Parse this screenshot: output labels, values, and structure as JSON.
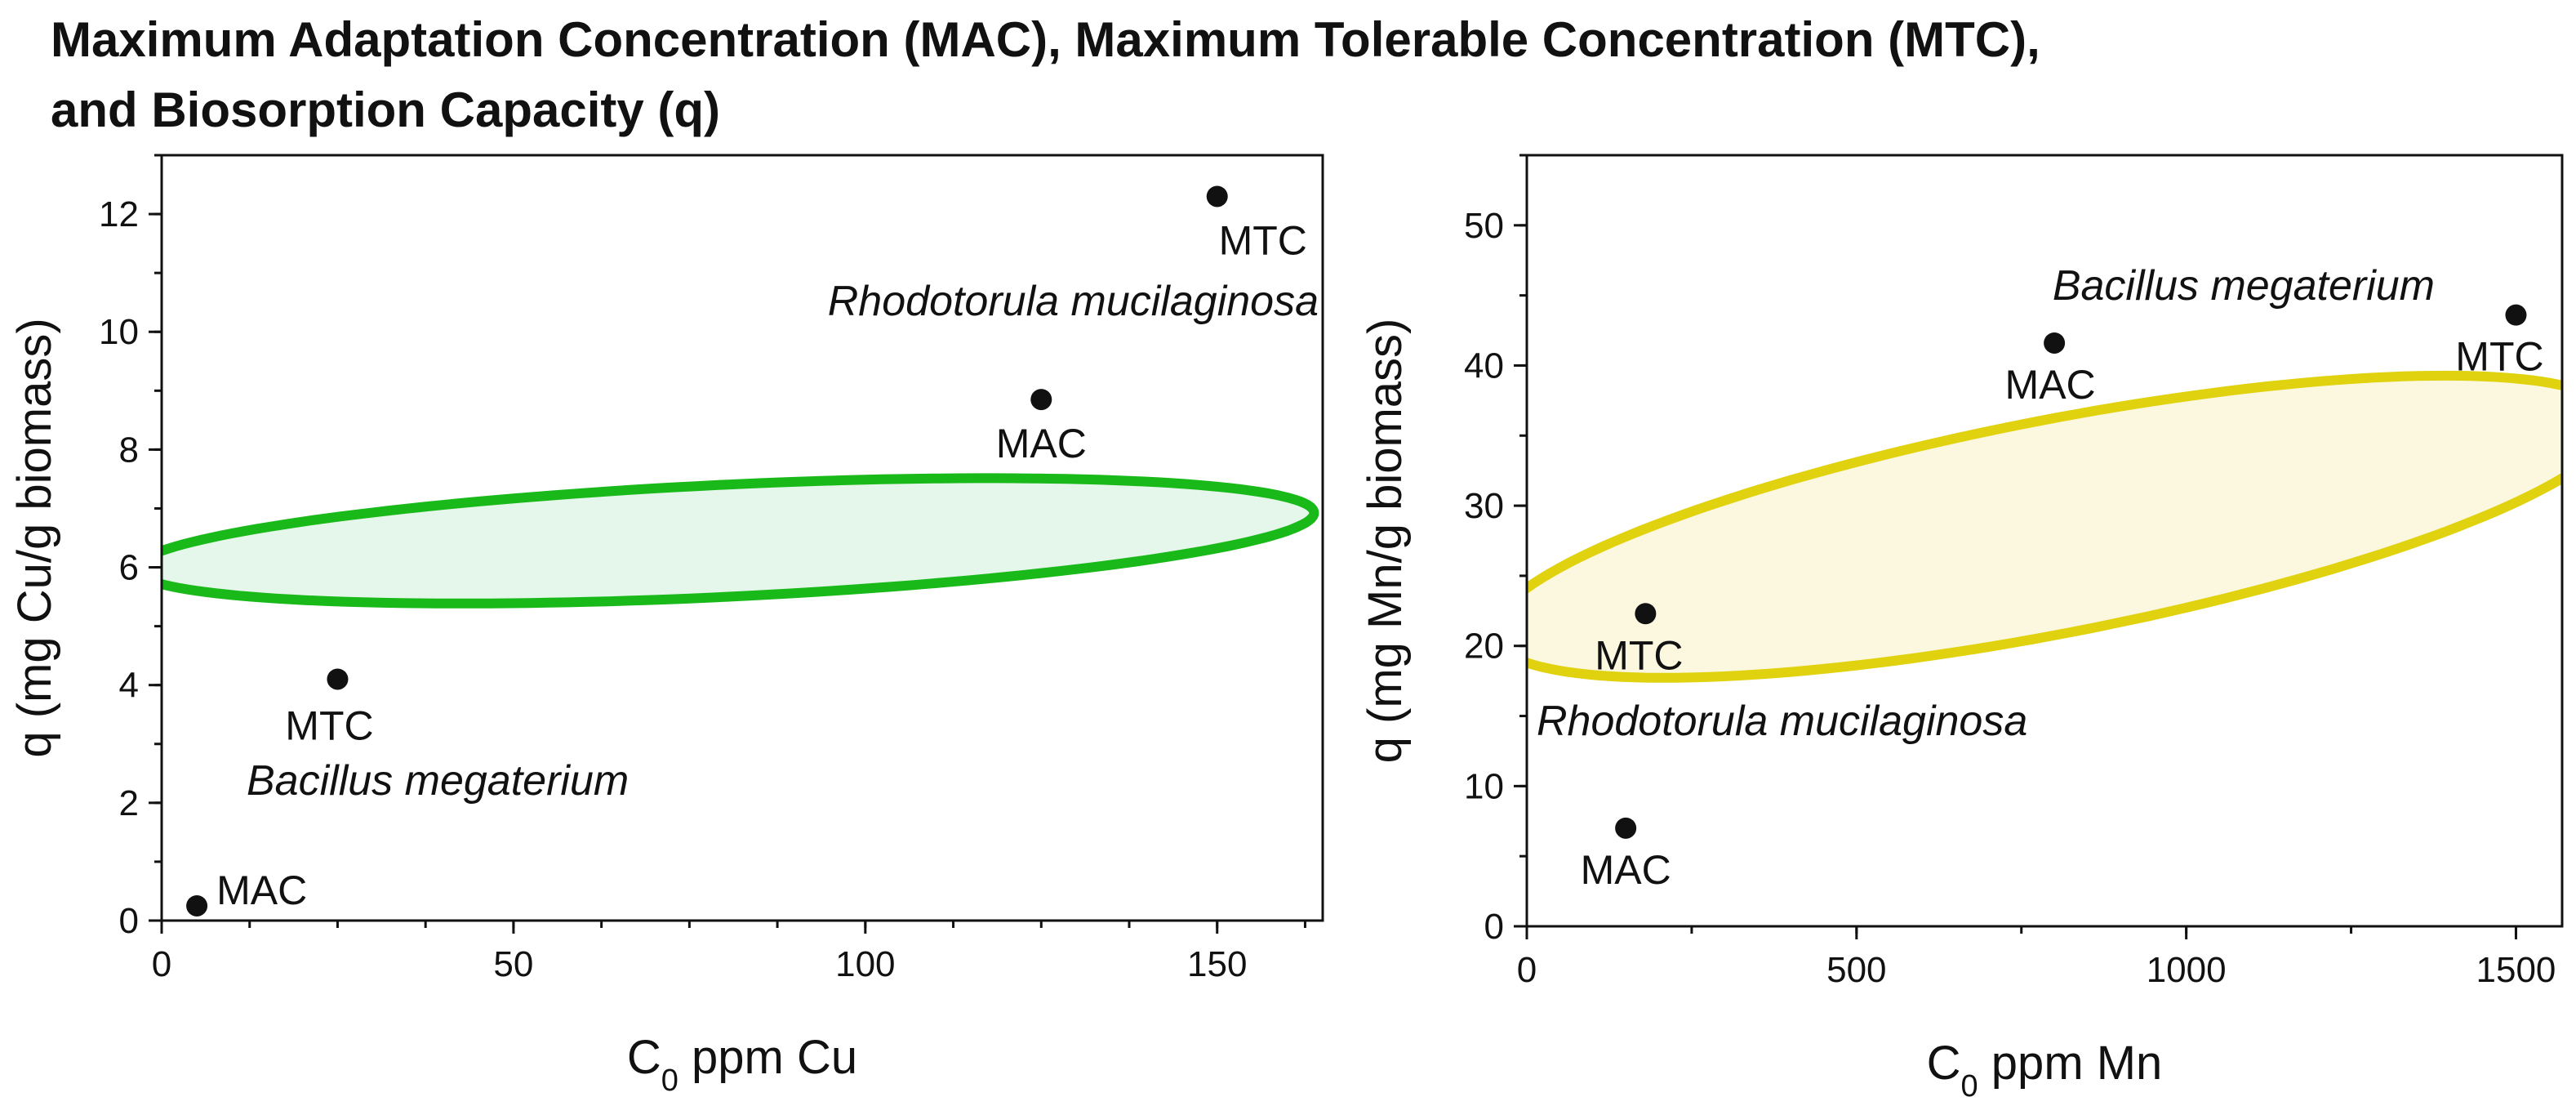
{
  "title": {
    "line1": "Maximum Adaptation Concentration (MAC), Maximum Tolerable Concentration (MTC),",
    "line2": "and Biosorption Capacity (q)"
  },
  "chart_data": [
    {
      "type": "scatter",
      "xlabel": {
        "main": "C",
        "sub": "0",
        "rest": " ppm Cu"
      },
      "ylabel": "q (mg Cu/g biomass)",
      "xlim": [
        0,
        165
      ],
      "ylim": [
        0,
        13
      ],
      "xticks": [
        0,
        50,
        100,
        150
      ],
      "yticks": [
        0,
        2,
        4,
        6,
        8,
        10,
        12
      ],
      "minor_x_step": 12.5,
      "minor_y_step": 1,
      "points": [
        {
          "label": "MAC",
          "x": 5,
          "y": 0.25
        },
        {
          "label": "MTC",
          "x": 25,
          "y": 4.1
        },
        {
          "label": "MAC",
          "x": 125,
          "y": 8.85
        },
        {
          "label": "MTC",
          "x": 150,
          "y": 12.3
        }
      ],
      "groups": [
        {
          "name": "Rhodotorula mucilaginosa",
          "points": [
            2,
            3
          ]
        },
        {
          "name": "Bacillus megaterium",
          "points": [
            0,
            1
          ]
        }
      ],
      "ellipse": {
        "center": [
          80,
          6.45
        ],
        "semi_axes": [
          84,
          0.95
        ],
        "angle_deg": 4.2,
        "stroke": "#1ab91a",
        "fill": "#e5f6ea"
      }
    },
    {
      "type": "scatter",
      "xlabel": {
        "main": "C",
        "sub": "0",
        "rest": " ppm Mn"
      },
      "ylabel": "q (mg Mn/g biomass)",
      "xlim": [
        0,
        1570
      ],
      "ylim": [
        0,
        55
      ],
      "xticks": [
        0,
        500,
        1000,
        1500
      ],
      "yticks": [
        0,
        10,
        20,
        30,
        40,
        50
      ],
      "minor_x_step": 250,
      "minor_y_step": 5,
      "points": [
        {
          "label": "MAC",
          "x": 150,
          "y": 7
        },
        {
          "label": "MTC",
          "x": 180,
          "y": 22.3
        },
        {
          "label": "MAC",
          "x": 800,
          "y": 41.6
        },
        {
          "label": "MTC",
          "x": 1500,
          "y": 43.6
        }
      ],
      "groups": [
        {
          "name": "Bacillus megaterium",
          "points": [
            2,
            3
          ]
        },
        {
          "name": "Rhodotorula mucilaginosa",
          "points": [
            0,
            1
          ]
        }
      ],
      "ellipse": {
        "center": [
          800,
          28.5
        ],
        "semi_axes": [
          880,
          7.5
        ],
        "angle_deg": 15,
        "stroke": "#e1d20f",
        "fill": "#fcf8e0"
      }
    }
  ]
}
